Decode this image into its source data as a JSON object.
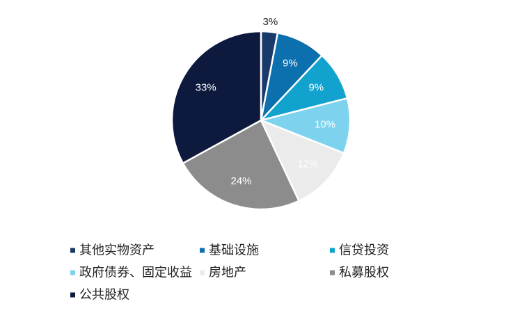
{
  "chart_data": {
    "type": "pie",
    "title": "",
    "slices": [
      {
        "label": "其他实物资产",
        "value": 3,
        "display": "3%",
        "color": "#1a3a6b",
        "label_color": "#222222",
        "label_outside": true
      },
      {
        "label": "基础设施",
        "value": 9,
        "display": "9%",
        "color": "#0c6fae",
        "label_color": "#ffffff"
      },
      {
        "label": "信贷投资",
        "value": 9,
        "display": "9%",
        "color": "#11a3cd",
        "label_color": "#ffffff"
      },
      {
        "label": "政府债券、固定收益",
        "value": 10,
        "display": "10%",
        "color": "#7dd3ee",
        "label_color": "#ffffff"
      },
      {
        "label": "房地产",
        "value": 12,
        "display": "12%",
        "color": "#ebebeb",
        "label_color": "#ffffff"
      },
      {
        "label": "私募股权",
        "value": 24,
        "display": "24%",
        "color": "#8c8c8c",
        "label_color": "#ffffff"
      },
      {
        "label": "公共股权",
        "value": 33,
        "display": "33%",
        "color": "#0d1a3d",
        "label_color": "#ffffff"
      }
    ],
    "legend_position": "bottom"
  }
}
